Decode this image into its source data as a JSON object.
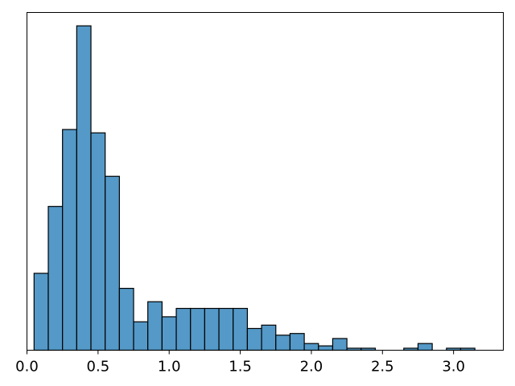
{
  "chart_data": {
    "type": "bar",
    "title": "",
    "xlabel": "",
    "ylabel": "",
    "bin_width": 0.1,
    "bins": [
      {
        "x0": 0.05,
        "x1": 0.15,
        "count": 23
      },
      {
        "x0": 0.15,
        "x1": 0.25,
        "count": 43
      },
      {
        "x0": 0.25,
        "x1": 0.35,
        "count": 66
      },
      {
        "x0": 0.35,
        "x1": 0.45,
        "count": 97
      },
      {
        "x0": 0.45,
        "x1": 0.55,
        "count": 65
      },
      {
        "x0": 0.55,
        "x1": 0.65,
        "count": 52
      },
      {
        "x0": 0.65,
        "x1": 0.75,
        "count": 18.5
      },
      {
        "x0": 0.75,
        "x1": 0.85,
        "count": 8.5
      },
      {
        "x0": 0.85,
        "x1": 0.95,
        "count": 14.5
      },
      {
        "x0": 0.95,
        "x1": 1.05,
        "count": 10
      },
      {
        "x0": 1.05,
        "x1": 1.15,
        "count": 12.5
      },
      {
        "x0": 1.15,
        "x1": 1.25,
        "count": 12.5
      },
      {
        "x0": 1.25,
        "x1": 1.35,
        "count": 12.5
      },
      {
        "x0": 1.35,
        "x1": 1.45,
        "count": 12.5
      },
      {
        "x0": 1.45,
        "x1": 1.55,
        "count": 12.5
      },
      {
        "x0": 1.55,
        "x1": 1.65,
        "count": 6.5
      },
      {
        "x0": 1.65,
        "x1": 1.75,
        "count": 7.5
      },
      {
        "x0": 1.75,
        "x1": 1.85,
        "count": 4.5
      },
      {
        "x0": 1.85,
        "x1": 1.95,
        "count": 5
      },
      {
        "x0": 1.95,
        "x1": 2.05,
        "count": 2
      },
      {
        "x0": 2.05,
        "x1": 2.15,
        "count": 1.3
      },
      {
        "x0": 2.15,
        "x1": 2.25,
        "count": 3.5
      },
      {
        "x0": 2.25,
        "x1": 2.35,
        "count": 0.6
      },
      {
        "x0": 2.35,
        "x1": 2.45,
        "count": 0.6
      },
      {
        "x0": 2.45,
        "x1": 2.55,
        "count": 0
      },
      {
        "x0": 2.55,
        "x1": 2.65,
        "count": 0
      },
      {
        "x0": 2.65,
        "x1": 2.75,
        "count": 0.6
      },
      {
        "x0": 2.75,
        "x1": 2.85,
        "count": 2
      },
      {
        "x0": 2.85,
        "x1": 2.95,
        "count": 0
      },
      {
        "x0": 2.95,
        "x1": 3.05,
        "count": 0.6
      },
      {
        "x0": 3.05,
        "x1": 3.15,
        "count": 0.6
      }
    ],
    "xlim": [
      0.0,
      3.35
    ],
    "ylim": [
      0,
      101
    ],
    "x_ticks": [
      "0.0",
      "0.5",
      "1.0",
      "1.5",
      "2.0",
      "2.5",
      "3.0"
    ],
    "y_ticks_visible": false,
    "grid": false,
    "legend": "none",
    "colors": {
      "bar_fill": "#5499c7",
      "bar_edge": "#000000",
      "axes": "#000000",
      "background": "#ffffff"
    }
  }
}
